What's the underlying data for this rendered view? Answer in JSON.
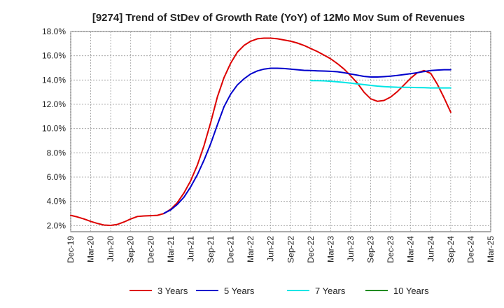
{
  "chart_data": {
    "type": "line",
    "title": "[9274]  Trend of StDev of Growth Rate (YoY) of 12Mo Mov Sum of Revenues",
    "xlabel": "",
    "ylabel": "",
    "ylim": [
      1.5,
      18.0
    ],
    "y_ticks": [
      2.0,
      4.0,
      6.0,
      8.0,
      10.0,
      12.0,
      14.0,
      16.0,
      18.0
    ],
    "y_tick_labels": [
      "2.0%",
      "4.0%",
      "6.0%",
      "8.0%",
      "10.0%",
      "12.0%",
      "14.0%",
      "16.0%",
      "18.0%"
    ],
    "x_tick_labels": [
      "Dec-19",
      "Mar-20",
      "Jun-20",
      "Sep-20",
      "Dec-20",
      "Mar-21",
      "Jun-21",
      "Sep-21",
      "Dec-21",
      "Mar-22",
      "Jun-22",
      "Sep-22",
      "Dec-22",
      "Mar-23",
      "Jun-23",
      "Sep-23",
      "Dec-23",
      "Mar-24",
      "Jun-24",
      "Sep-24",
      "Dec-24",
      "Mar-25"
    ],
    "grid": true,
    "legend_position": "bottom",
    "series": [
      {
        "name": "3 Years",
        "color": "#dd0000",
        "start_index": 0,
        "values": [
          2.85,
          2.72,
          2.55,
          2.35,
          2.18,
          2.05,
          2.02,
          2.1,
          2.3,
          2.55,
          2.75,
          2.8,
          2.82,
          2.85,
          3.0,
          3.35,
          3.9,
          4.7,
          5.7,
          7.0,
          8.6,
          10.5,
          12.6,
          14.2,
          15.4,
          16.3,
          16.85,
          17.2,
          17.4,
          17.45,
          17.45,
          17.4,
          17.3,
          17.2,
          17.05,
          16.85,
          16.6,
          16.35,
          16.05,
          15.75,
          15.35,
          14.9,
          14.35,
          13.75,
          13.0,
          12.45,
          12.25,
          12.32,
          12.6,
          13.05,
          13.6,
          14.15,
          14.6,
          14.78,
          14.55,
          13.65,
          12.55,
          11.35
        ]
      },
      {
        "name": "5 Years",
        "color": "#0000cc",
        "start_index": 14,
        "values": [
          3.02,
          3.3,
          3.75,
          4.35,
          5.2,
          6.2,
          7.4,
          8.75,
          10.3,
          11.8,
          12.85,
          13.6,
          14.1,
          14.5,
          14.75,
          14.9,
          14.97,
          14.97,
          14.95,
          14.9,
          14.85,
          14.8,
          14.78,
          14.76,
          14.74,
          14.72,
          14.68,
          14.6,
          14.5,
          14.4,
          14.3,
          14.25,
          14.25,
          14.28,
          14.32,
          14.38,
          14.45,
          14.52,
          14.6,
          14.7,
          14.78,
          14.82,
          14.85,
          14.85
        ]
      },
      {
        "name": "7 Years",
        "color": "#00e5e5",
        "start_index": 36,
        "values": [
          13.95,
          13.95,
          13.93,
          13.9,
          13.85,
          13.8,
          13.74,
          13.68,
          13.62,
          13.56,
          13.5,
          13.46,
          13.43,
          13.41,
          13.4,
          13.39,
          13.38,
          13.37,
          13.35,
          13.35,
          13.35,
          13.35
        ]
      },
      {
        "name": "10 Years",
        "color": "#228b22",
        "start_index": 0,
        "values": []
      }
    ]
  }
}
